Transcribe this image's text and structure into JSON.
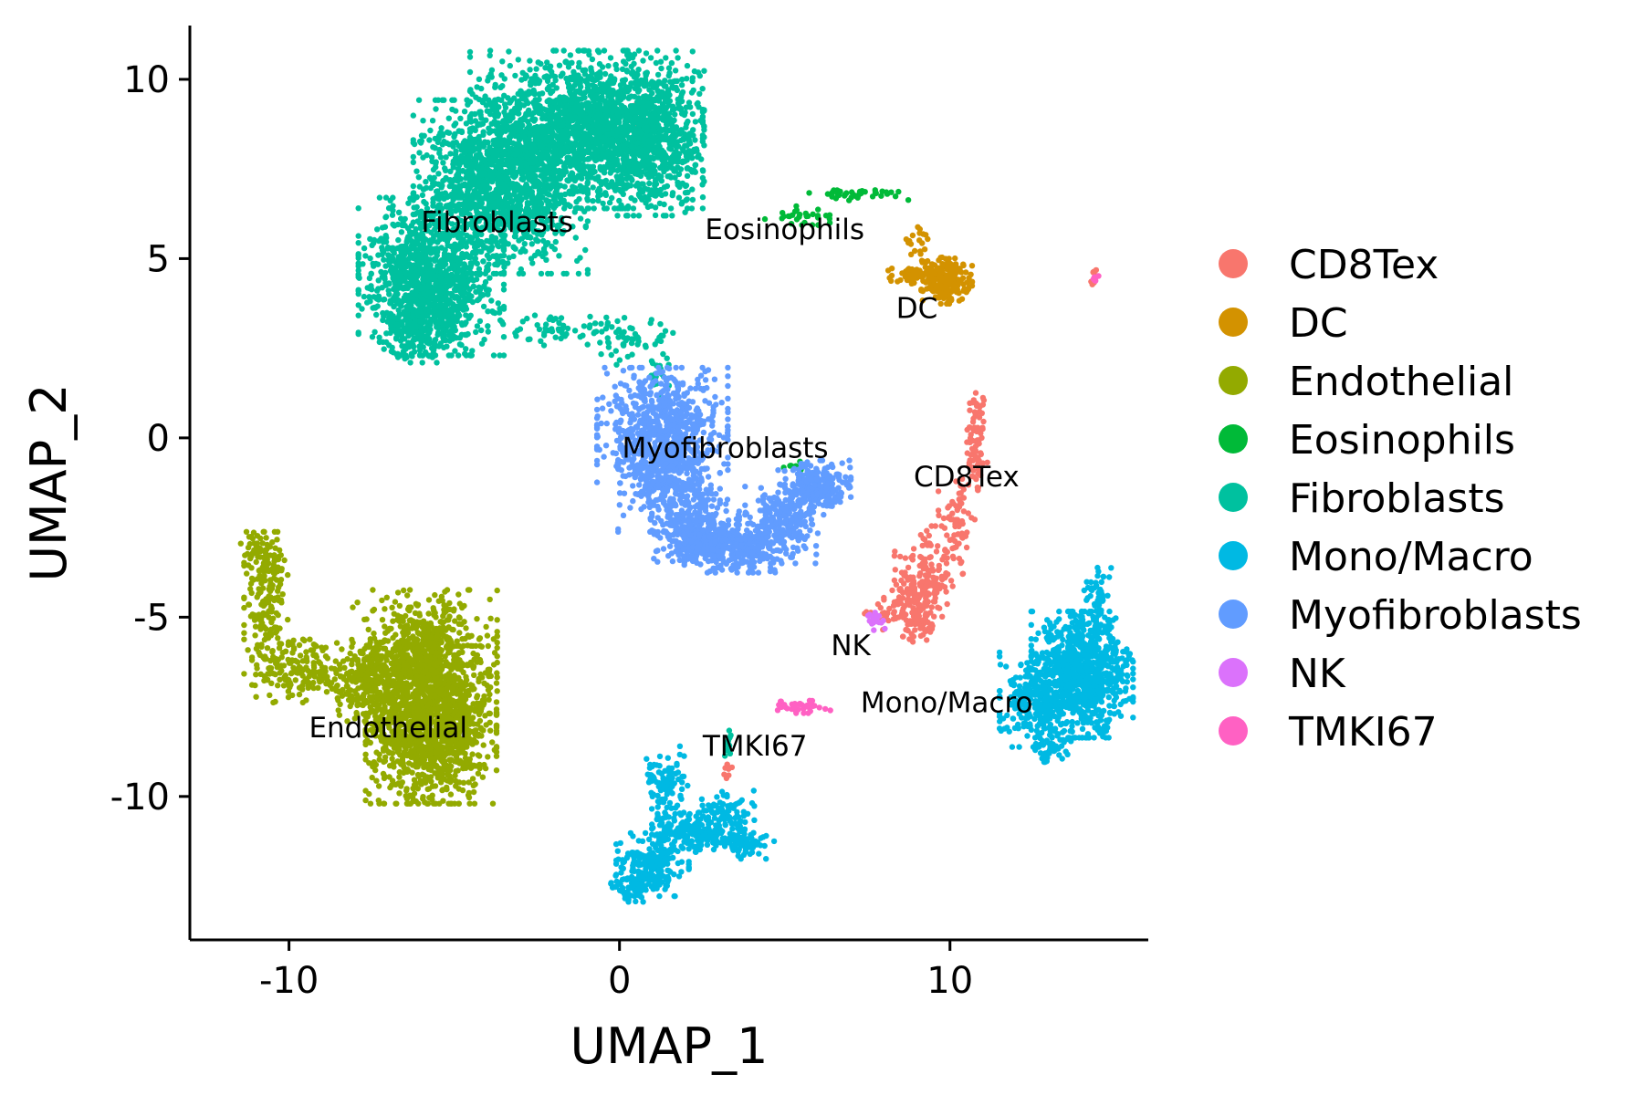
{
  "chart_data": {
    "type": "scatter",
    "xlabel": "UMAP_1",
    "ylabel": "UMAP_2",
    "xlim": [
      -13,
      16
    ],
    "ylim": [
      -14,
      11.5
    ],
    "xticks": [
      -10,
      0,
      10
    ],
    "yticks": [
      10,
      5,
      0,
      -5,
      -10
    ],
    "grid": false,
    "legend_position": "right",
    "series": [
      {
        "name": "CD8Tex",
        "color": "#F8766D",
        "label": "CD8Tex",
        "label_pos": [
          10.5,
          -1.1
        ],
        "clusters": [
          {
            "cx": 10.8,
            "cy": -0.1,
            "sx": 0.15,
            "sy": 0.8,
            "n": 80
          },
          {
            "cx": 10.2,
            "cy": -2.4,
            "sx": 0.25,
            "sy": 0.8,
            "n": 70
          },
          {
            "cx": 9.2,
            "cy": -4.0,
            "sx": 0.4,
            "sy": 0.7,
            "n": 160
          },
          {
            "cx": 9.1,
            "cy": -4.9,
            "sx": 0.2,
            "sy": 0.4,
            "n": 70
          },
          {
            "cx": 8.3,
            "cy": -4.8,
            "sx": 0.4,
            "sy": 0.25,
            "n": 50
          },
          {
            "cx": 14.4,
            "cy": 4.5,
            "sx": 0.1,
            "sy": 0.1,
            "n": 8
          },
          {
            "cx": 0.3,
            "cy": 9.0,
            "sx": 0.15,
            "sy": 0.15,
            "n": 8
          },
          {
            "cx": 3.3,
            "cy": -9.3,
            "sx": 0.06,
            "sy": 0.12,
            "n": 8
          }
        ]
      },
      {
        "name": "DC",
        "color": "#D39200",
        "label": "DC",
        "label_pos": [
          9.0,
          3.6
        ],
        "clusters": [
          {
            "cx": 9.9,
            "cy": 4.4,
            "sx": 0.35,
            "sy": 0.3,
            "n": 200
          },
          {
            "cx": 8.9,
            "cy": 4.5,
            "sx": 0.35,
            "sy": 0.15,
            "n": 50
          },
          {
            "cx": 9.0,
            "cy": 5.4,
            "sx": 0.3,
            "sy": 0.3,
            "n": 20
          }
        ]
      },
      {
        "name": "Endothelial",
        "color": "#93AA00",
        "label": "Endothelial",
        "label_pos": [
          -7.0,
          -8.1
        ],
        "clusters": [
          {
            "cx": -5.7,
            "cy": -8.0,
            "sx": 0.9,
            "sy": 1.0,
            "n": 1300
          },
          {
            "cx": -5.9,
            "cy": -6.0,
            "sx": 1.0,
            "sy": 0.8,
            "n": 600
          },
          {
            "cx": -7.5,
            "cy": -6.8,
            "sx": 0.9,
            "sy": 0.5,
            "n": 300
          },
          {
            "cx": -9.8,
            "cy": -6.5,
            "sx": 0.6,
            "sy": 0.4,
            "n": 150
          },
          {
            "cx": -10.7,
            "cy": -4.6,
            "sx": 0.3,
            "sy": 0.9,
            "n": 160
          },
          {
            "cx": -10.8,
            "cy": -3.3,
            "sx": 0.3,
            "sy": 0.3,
            "n": 60
          }
        ]
      },
      {
        "name": "Eosinophils",
        "color": "#00BA38",
        "label": "Eosinophils",
        "label_pos": [
          5.0,
          5.8
        ],
        "clusters": [
          {
            "cx": 5.5,
            "cy": 6.2,
            "sx": 0.5,
            "sy": 0.12,
            "n": 30
          },
          {
            "cx": 7.2,
            "cy": 6.8,
            "sx": 0.7,
            "sy": 0.08,
            "n": 40
          },
          {
            "cx": 5.3,
            "cy": -0.8,
            "sx": 0.15,
            "sy": 0.08,
            "n": 8
          }
        ]
      },
      {
        "name": "Fibroblasts",
        "color": "#00C19F",
        "label": "Fibroblasts",
        "label_pos": [
          -3.7,
          6.0
        ],
        "clusters": [
          {
            "cx": -1.0,
            "cy": 8.6,
            "sx": 1.6,
            "sy": 1.0,
            "n": 1700
          },
          {
            "cx": 0.8,
            "cy": 8.4,
            "sx": 0.8,
            "sy": 1.0,
            "n": 500
          },
          {
            "cx": -3.6,
            "cy": 7.0,
            "sx": 1.2,
            "sy": 1.1,
            "n": 1300
          },
          {
            "cx": -5.7,
            "cy": 4.5,
            "sx": 1.0,
            "sy": 1.0,
            "n": 1000
          },
          {
            "cx": -6.0,
            "cy": 3.2,
            "sx": 0.6,
            "sy": 0.5,
            "n": 250
          },
          {
            "cx": -1.8,
            "cy": 3.0,
            "sx": 1.0,
            "sy": 0.2,
            "n": 60
          },
          {
            "cx": 0.3,
            "cy": 2.7,
            "sx": 0.6,
            "sy": 0.3,
            "n": 50
          },
          {
            "cx": 1.2,
            "cy": 1.8,
            "sx": 0.2,
            "sy": 0.3,
            "n": 20
          },
          {
            "cx": 3.3,
            "cy": -8.8,
            "sx": 0.05,
            "sy": 0.3,
            "n": 15
          }
        ]
      },
      {
        "name": "Mono/Macro",
        "color": "#00B9E3",
        "label": "Mono/Macro",
        "label_pos": [
          9.9,
          -7.4
        ],
        "clusters": [
          {
            "cx": 14.0,
            "cy": -6.6,
            "sx": 0.7,
            "sy": 0.8,
            "n": 900
          },
          {
            "cx": 12.6,
            "cy": -7.3,
            "sx": 0.5,
            "sy": 0.6,
            "n": 250
          },
          {
            "cx": 14.5,
            "cy": -4.5,
            "sx": 0.2,
            "sy": 0.4,
            "n": 60
          },
          {
            "cx": 13.0,
            "cy": -8.6,
            "sx": 0.3,
            "sy": 0.2,
            "n": 40
          },
          {
            "cx": 1.4,
            "cy": -9.7,
            "sx": 0.3,
            "sy": 0.5,
            "n": 100
          },
          {
            "cx": 2.3,
            "cy": -11.0,
            "sx": 0.6,
            "sy": 0.25,
            "n": 220
          },
          {
            "cx": 1.0,
            "cy": -11.9,
            "sx": 0.5,
            "sy": 0.4,
            "n": 200
          },
          {
            "cx": 0.4,
            "cy": -12.5,
            "sx": 0.3,
            "sy": 0.2,
            "n": 60
          },
          {
            "cx": 3.2,
            "cy": -10.5,
            "sx": 0.4,
            "sy": 0.3,
            "n": 80
          },
          {
            "cx": 3.8,
            "cy": -11.3,
            "sx": 0.4,
            "sy": 0.2,
            "n": 70
          }
        ]
      },
      {
        "name": "Myofibroblasts",
        "color": "#619CFF",
        "label": "Myofibroblasts",
        "label_pos": [
          3.2,
          -0.3
        ],
        "clusters": [
          {
            "cx": 1.3,
            "cy": 0.2,
            "sx": 0.9,
            "sy": 0.8,
            "n": 700
          },
          {
            "cx": 1.5,
            "cy": -1.3,
            "sx": 0.7,
            "sy": 0.6,
            "n": 300
          },
          {
            "cx": 2.3,
            "cy": -2.6,
            "sx": 0.6,
            "sy": 0.4,
            "n": 300
          },
          {
            "cx": 3.5,
            "cy": -3.1,
            "sx": 0.7,
            "sy": 0.3,
            "n": 300
          },
          {
            "cx": 4.9,
            "cy": -2.4,
            "sx": 0.5,
            "sy": 0.5,
            "n": 250
          },
          {
            "cx": 5.9,
            "cy": -1.4,
            "sx": 0.5,
            "sy": 0.35,
            "n": 250
          }
        ]
      },
      {
        "name": "NK",
        "color": "#DB72FB",
        "label": "NK",
        "label_pos": [
          7.0,
          -5.8
        ],
        "clusters": [
          {
            "cx": 7.7,
            "cy": -5.1,
            "sx": 0.15,
            "sy": 0.15,
            "n": 20
          }
        ]
      },
      {
        "name": "TMKI67",
        "color": "#FF61C3",
        "label": "TMKI67",
        "label_pos": [
          4.1,
          -8.6
        ],
        "clusters": [
          {
            "cx": 5.5,
            "cy": -7.5,
            "sx": 0.4,
            "sy": 0.08,
            "n": 40
          },
          {
            "cx": 14.4,
            "cy": 4.4,
            "sx": 0.08,
            "sy": 0.08,
            "n": 8
          }
        ]
      }
    ]
  }
}
